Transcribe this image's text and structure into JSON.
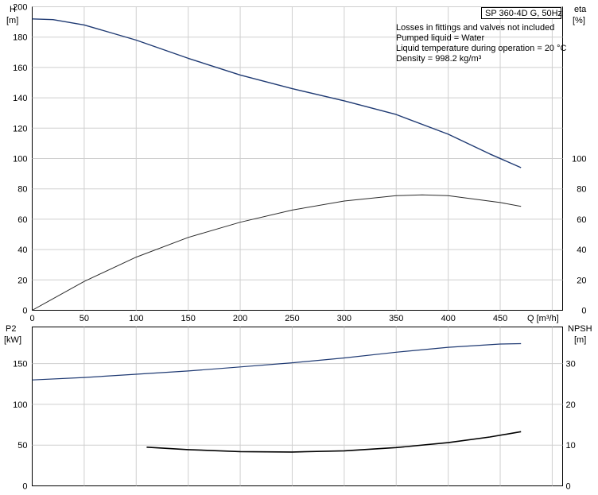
{
  "chart_data": [
    {
      "type": "line",
      "title": "SP 360-4D G, 50Hz",
      "notes": [
        "Losses in fittings and valves not included",
        "Pumped liquid = Water",
        "Liquid temperature during operation = 20 °C",
        "Density = 998.2 kg/m³"
      ],
      "xlabel": "Q [m³/h]",
      "ylabel_left": [
        "H",
        "[m]"
      ],
      "ylabel_right": [
        "eta",
        "[%]"
      ],
      "xlim": [
        0,
        510
      ],
      "ylim": [
        0,
        200
      ],
      "x_ticks": [
        0,
        50,
        100,
        150,
        200,
        250,
        300,
        350,
        400,
        450
      ],
      "y_ticks_left": [
        0,
        20,
        40,
        60,
        80,
        100,
        120,
        140,
        160,
        180,
        200
      ],
      "y_ticks_right": [
        0,
        20,
        40,
        60,
        80,
        100
      ],
      "grid": true,
      "series": [
        {
          "axis": "left",
          "color": "#1f3a73",
          "x": [
            0,
            20,
            50,
            100,
            150,
            200,
            250,
            300,
            350,
            400,
            440,
            470
          ],
          "y": [
            192,
            191.5,
            188,
            178,
            166,
            155,
            146,
            138,
            129,
            116,
            103,
            94
          ]
        },
        {
          "axis": "right",
          "color": "#2b2b2b",
          "x": [
            0,
            50,
            100,
            150,
            200,
            250,
            300,
            350,
            375,
            400,
            450,
            470
          ],
          "y": [
            0,
            19,
            35,
            48,
            58,
            66,
            72,
            75.5,
            76,
            75.5,
            71,
            68.5
          ]
        }
      ]
    },
    {
      "type": "line",
      "ylabel_left": [
        "P2",
        "[kW]"
      ],
      "ylabel_right": [
        "NPSH",
        "[m]"
      ],
      "xlim": [
        0,
        510
      ],
      "ylim": [
        0,
        195
      ],
      "y_ticks_left": [
        0,
        50,
        100,
        150
      ],
      "y_ticks_right": [
        0,
        10,
        20,
        30
      ],
      "grid": true,
      "series": [
        {
          "axis": "left",
          "color": "#1f3a73",
          "x": [
            0,
            50,
            100,
            150,
            200,
            250,
            300,
            350,
            400,
            450,
            470
          ],
          "y": [
            130,
            133,
            137,
            141,
            146,
            151,
            157,
            164,
            170,
            174,
            174.5
          ]
        },
        {
          "axis": "right",
          "color": "#000000",
          "x": [
            110,
            150,
            200,
            250,
            300,
            350,
            400,
            440,
            470
          ],
          "y": [
            9.5,
            8.9,
            8.4,
            8.3,
            8.6,
            9.4,
            10.6,
            12.0,
            13.3
          ]
        }
      ]
    }
  ]
}
